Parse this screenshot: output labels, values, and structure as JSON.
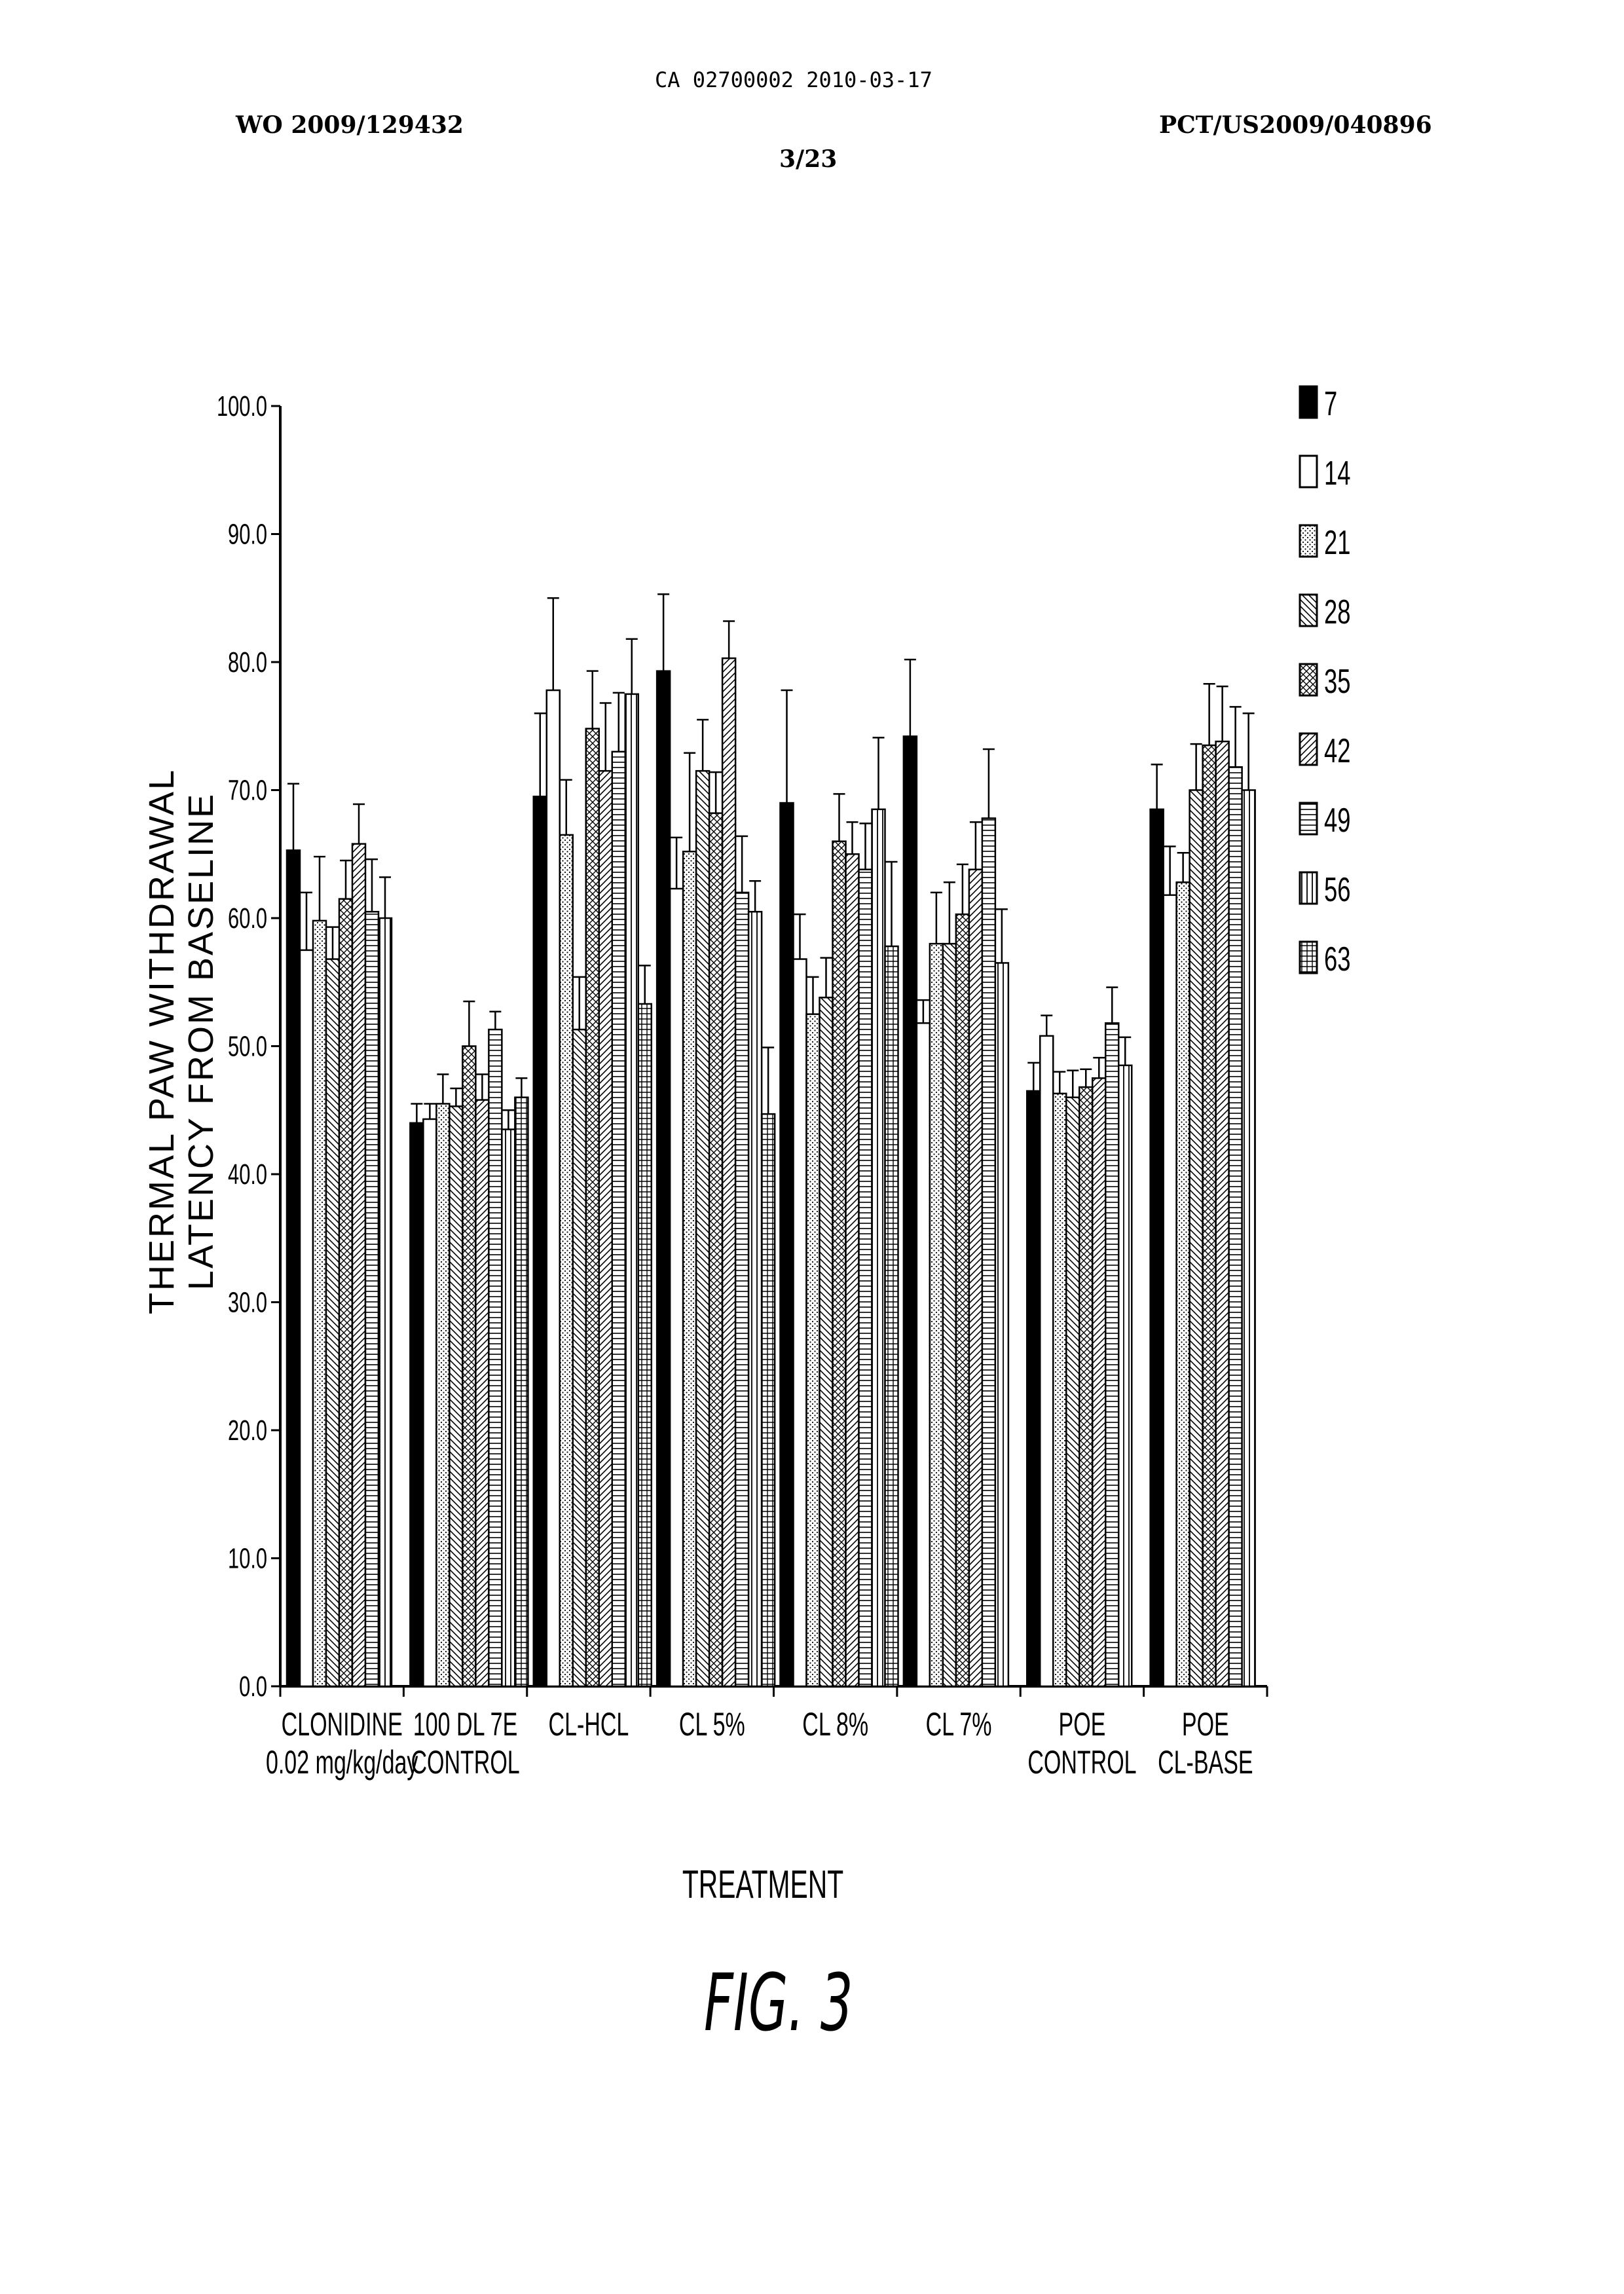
{
  "header": {
    "ca_id": "CA 02700002 2010-03-17",
    "wo_id": "WO 2009/129432",
    "pct_id": "PCT/US2009/040896",
    "page_num": "3/23"
  },
  "figure_label": "FIG. 3",
  "chart_data": {
    "type": "bar",
    "title": "",
    "ylabel": [
      "THERMAL PAW WITHDRAWAL",
      "LATENCY FROM BASELINE"
    ],
    "xlabel": "TREATMENT",
    "ylim": [
      0,
      100
    ],
    "yticks": [
      "0.0",
      "10.0",
      "20.0",
      "30.0",
      "40.0",
      "50.0",
      "60.0",
      "70.0",
      "80.0",
      "90.0",
      "100.0"
    ],
    "grid": false,
    "legend_position": "top-right",
    "categories": [
      [
        "CLONIDINE",
        "0.02 mg/kg/day"
      ],
      [
        "100 DL 7E",
        "CONTROL"
      ],
      [
        "CL-HCL"
      ],
      [
        "CL 5%"
      ],
      [
        "CL 8%"
      ],
      [
        "CL 7%"
      ],
      [
        "POE",
        "CONTROL"
      ],
      [
        "POE",
        "CL-BASE"
      ]
    ],
    "series": [
      {
        "name": "7",
        "pattern": "solid",
        "values": [
          65.3,
          44.0,
          69.5,
          79.3,
          69.0,
          74.2,
          46.5,
          68.5
        ],
        "errors": [
          5.2,
          1.5,
          6.5,
          6.0,
          8.8,
          6.0,
          2.2,
          3.5
        ]
      },
      {
        "name": "14",
        "pattern": "hollow",
        "values": [
          57.5,
          44.3,
          77.8,
          62.3,
          56.8,
          51.8,
          50.8,
          61.8
        ],
        "errors": [
          4.5,
          1.2,
          7.2,
          4.0,
          3.5,
          1.8,
          1.6,
          3.8
        ]
      },
      {
        "name": "21",
        "pattern": "dots",
        "values": [
          59.8,
          45.5,
          66.5,
          65.2,
          52.5,
          58.0,
          46.3,
          62.8
        ],
        "errors": [
          5.0,
          2.3,
          4.3,
          7.7,
          2.9,
          4.0,
          1.7,
          2.3
        ]
      },
      {
        "name": "28",
        "pattern": "backslash",
        "values": [
          56.8,
          45.3,
          51.3,
          71.5,
          53.8,
          58.0,
          46.0,
          70.0
        ],
        "errors": [
          2.5,
          1.4,
          4.1,
          4.0,
          3.1,
          4.8,
          2.1,
          3.6
        ]
      },
      {
        "name": "35",
        "pattern": "crosshatch",
        "values": [
          61.5,
          50.0,
          74.8,
          68.2,
          66.0,
          60.3,
          46.8,
          73.5
        ],
        "errors": [
          3.0,
          3.5,
          4.5,
          3.2,
          3.7,
          3.9,
          1.4,
          4.8
        ]
      },
      {
        "name": "42",
        "pattern": "slash",
        "values": [
          65.8,
          45.8,
          71.5,
          80.3,
          65.0,
          63.8,
          47.5,
          73.8
        ],
        "errors": [
          3.1,
          2.0,
          5.3,
          2.9,
          2.5,
          3.7,
          1.6,
          4.3
        ]
      },
      {
        "name": "49",
        "pattern": "hlines",
        "values": [
          60.5,
          51.3,
          73.0,
          62.0,
          63.8,
          67.8,
          51.8,
          71.8
        ],
        "errors": [
          4.1,
          1.4,
          4.6,
          4.4,
          3.6,
          5.4,
          2.8,
          4.7
        ]
      },
      {
        "name": "56",
        "pattern": "vlines",
        "values": [
          60.0,
          43.5,
          77.5,
          60.5,
          68.5,
          56.5,
          48.5,
          70.0
        ],
        "errors": [
          3.2,
          1.5,
          4.3,
          2.4,
          5.6,
          4.2,
          2.2,
          6.0
        ]
      },
      {
        "name": "63",
        "pattern": "grid",
        "values": [
          null,
          46.0,
          53.3,
          44.7,
          57.8,
          null,
          null,
          null
        ],
        "errors": [
          0,
          1.5,
          3.0,
          5.2,
          6.6,
          0,
          0,
          0
        ]
      }
    ]
  }
}
